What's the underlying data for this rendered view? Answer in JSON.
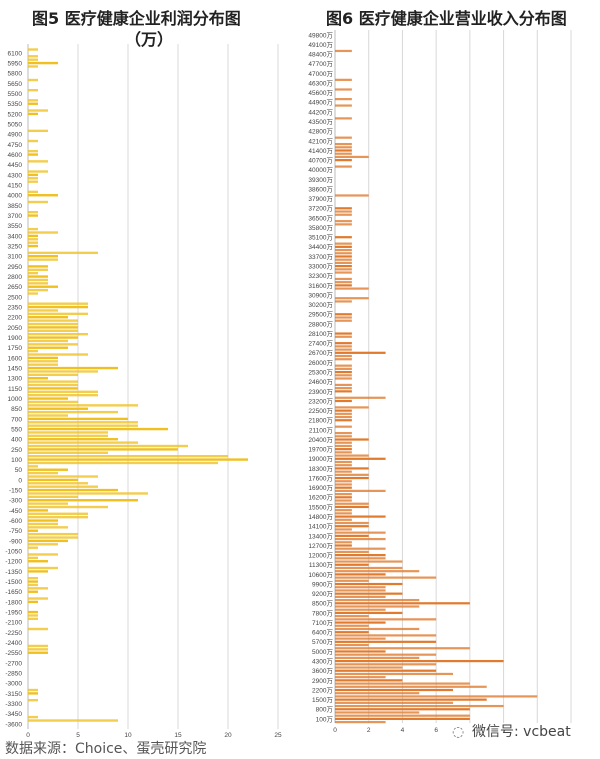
{
  "chart_data": [
    {
      "type": "bar",
      "orientation": "horizontal",
      "title": "图5 医疗健康企业利润分布图（万）",
      "title_line1": "图5 医疗健康企业利润分布图",
      "title_line2": "（万）",
      "xlim": [
        0,
        25
      ],
      "xticks": [
        "0",
        "5",
        "10",
        "15",
        "20",
        "25"
      ],
      "grid": true,
      "color": "#f0c020",
      "categories": [
        "6100",
        "5950",
        "5800",
        "5650",
        "5500",
        "5350",
        "5200",
        "5050",
        "4900",
        "4750",
        "4600",
        "4450",
        "4300",
        "4150",
        "4000",
        "3850",
        "3700",
        "3550",
        "3400",
        "3250",
        "3100",
        "2950",
        "2800",
        "2650",
        "2500",
        "2350",
        "2200",
        "2050",
        "1900",
        "1750",
        "1600",
        "1450",
        "1300",
        "1150",
        "1000",
        "850",
        "700",
        "550",
        "400",
        "250",
        "100",
        "50",
        "0",
        "-150",
        "-300",
        "-450",
        "-600",
        "-750",
        "-900",
        "-1050",
        "-1200",
        "-1350",
        "-1500",
        "-1650",
        "-1800",
        "-1950",
        "-2100",
        "-2250",
        "-2400",
        "-2550",
        "-2700",
        "-2850",
        "-3000",
        "-3150",
        "-3300",
        "-3450",
        "-3600"
      ],
      "values": [
        [
          1,
          0,
          1
        ],
        [
          1,
          3,
          1
        ],
        [
          0,
          0,
          0
        ],
        [
          1,
          0,
          0
        ],
        [
          1,
          0,
          0
        ],
        [
          1,
          1,
          0
        ],
        [
          2,
          1,
          0
        ],
        [
          0,
          0,
          0
        ],
        [
          2,
          0,
          0
        ],
        [
          1,
          0,
          0
        ],
        [
          1,
          1,
          0
        ],
        [
          2,
          0,
          0
        ],
        [
          2,
          1,
          1
        ],
        [
          1,
          0,
          0
        ],
        [
          1,
          3,
          0
        ],
        [
          2,
          0,
          0
        ],
        [
          1,
          1,
          0
        ],
        [
          0,
          0,
          1
        ],
        [
          3,
          1,
          1
        ],
        [
          1,
          1,
          0
        ],
        [
          7,
          3,
          3
        ],
        [
          0,
          2,
          2
        ],
        [
          1,
          2,
          2
        ],
        [
          2,
          3,
          2
        ],
        [
          1,
          0,
          0
        ],
        [
          6,
          6,
          3
        ],
        [
          6,
          4,
          5
        ],
        [
          5,
          5,
          5
        ],
        [
          6,
          5,
          4
        ],
        [
          5,
          4,
          1
        ],
        [
          6,
          3,
          3
        ],
        [
          3,
          9,
          7
        ],
        [
          5,
          2,
          5
        ],
        [
          5,
          5,
          7
        ],
        [
          7,
          4,
          5
        ],
        [
          11,
          6,
          9
        ],
        [
          4,
          10,
          11
        ],
        [
          11,
          14,
          8
        ],
        [
          8,
          9,
          11
        ],
        [
          16,
          15,
          8
        ],
        [
          20,
          22,
          19
        ],
        [
          1,
          4,
          3
        ],
        [
          7,
          5,
          6
        ],
        [
          7,
          9,
          12
        ],
        [
          5,
          11,
          4
        ],
        [
          8,
          2,
          6
        ],
        [
          6,
          3,
          3
        ],
        [
          4,
          1,
          5
        ],
        [
          5,
          4,
          3
        ],
        [
          1,
          0,
          3
        ],
        [
          1,
          2,
          0
        ],
        [
          3,
          2,
          0
        ],
        [
          1,
          1,
          1
        ],
        [
          2,
          1,
          0
        ],
        [
          2,
          1,
          0
        ],
        [
          0,
          1,
          1
        ],
        [
          1,
          0,
          0
        ],
        [
          2,
          0,
          0
        ],
        [
          0,
          0,
          2
        ],
        [
          2,
          2,
          0
        ],
        [
          0,
          0,
          0
        ],
        [
          0,
          0,
          0
        ],
        [
          0,
          0,
          0
        ],
        [
          1,
          1,
          0
        ],
        [
          1,
          0,
          0
        ],
        [
          0,
          0,
          1
        ],
        [
          9,
          0,
          0
        ]
      ]
    },
    {
      "type": "bar",
      "orientation": "horizontal",
      "title": "图6 医疗健康企业营业收入分布图",
      "xlim": [
        0,
        14
      ],
      "xticks": [
        "0",
        "2",
        "4",
        "6"
      ],
      "grid": true,
      "color": "#e07a2e",
      "categories": [
        "49800万",
        "49100万",
        "48400万",
        "47700万",
        "47000万",
        "46300万",
        "45600万",
        "44900万",
        "44200万",
        "43500万",
        "42800万",
        "42100万",
        "41400万",
        "40700万",
        "40000万",
        "39300万",
        "38600万",
        "37900万",
        "37200万",
        "36500万",
        "35800万",
        "35100万",
        "34400万",
        "33700万",
        "33000万",
        "32300万",
        "31600万",
        "30900万",
        "30200万",
        "29500万",
        "28800万",
        "28100万",
        "27400万",
        "26700万",
        "26000万",
        "25300万",
        "24600万",
        "23900万",
        "23200万",
        "22500万",
        "21800万",
        "21100万",
        "20400万",
        "19700万",
        "19000万",
        "18300万",
        "17600万",
        "16900万",
        "16200万",
        "15500万",
        "14800万",
        "14100万",
        "13400万",
        "12700万",
        "12000万",
        "11300万",
        "10600万",
        "9900万",
        "9200万",
        "8500万",
        "7800万",
        "7100万",
        "6400万",
        "5700万",
        "5000万",
        "4300万",
        "3600万",
        "2900万",
        "2200万",
        "1500万",
        "800万",
        "100万"
      ],
      "values": [
        [
          0,
          0,
          0
        ],
        [
          0,
          0,
          0
        ],
        [
          1,
          0,
          0
        ],
        [
          0,
          0,
          0
        ],
        [
          0,
          0,
          0
        ],
        [
          1,
          0,
          0
        ],
        [
          1,
          0,
          0
        ],
        [
          1,
          0,
          1
        ],
        [
          0,
          0,
          0
        ],
        [
          1,
          0,
          0
        ],
        [
          0,
          0,
          0
        ],
        [
          1,
          0,
          1
        ],
        [
          1,
          1,
          1
        ],
        [
          2,
          1,
          0
        ],
        [
          1,
          0,
          0
        ],
        [
          0,
          0,
          0
        ],
        [
          0,
          0,
          0
        ],
        [
          2,
          0,
          0
        ],
        [
          0,
          1,
          1
        ],
        [
          1,
          0,
          1
        ],
        [
          1,
          0,
          0
        ],
        [
          0,
          1,
          0
        ],
        [
          1,
          1,
          1
        ],
        [
          1,
          1,
          1
        ],
        [
          1,
          1,
          1
        ],
        [
          1,
          0,
          1
        ],
        [
          1,
          1,
          2
        ],
        [
          0,
          0,
          2
        ],
        [
          1,
          0,
          0
        ],
        [
          0,
          1,
          1
        ],
        [
          1,
          0,
          0
        ],
        [
          0,
          1,
          1
        ],
        [
          0,
          1,
          1
        ],
        [
          1,
          3,
          1
        ],
        [
          1,
          0,
          1
        ],
        [
          1,
          1,
          1
        ],
        [
          1,
          0,
          1
        ],
        [
          1,
          1,
          0
        ],
        [
          3,
          1,
          0
        ],
        [
          2,
          1,
          1
        ],
        [
          1,
          1,
          0
        ],
        [
          1,
          0,
          1
        ],
        [
          1,
          2,
          1
        ],
        [
          1,
          1,
          1
        ],
        [
          2,
          3,
          1
        ],
        [
          1,
          2,
          1
        ],
        [
          2,
          2,
          1
        ],
        [
          1,
          1,
          3
        ],
        [
          1,
          1,
          1
        ],
        [
          2,
          2,
          1
        ],
        [
          1,
          3,
          1
        ],
        [
          2,
          2,
          1
        ],
        [
          3,
          2,
          3
        ],
        [
          1,
          1,
          3
        ],
        [
          2,
          3,
          3
        ],
        [
          4,
          2,
          4
        ],
        [
          5,
          3,
          6
        ],
        [
          2,
          4,
          3
        ],
        [
          3,
          4,
          3
        ],
        [
          5,
          8,
          5
        ],
        [
          3,
          4,
          2
        ],
        [
          6,
          3,
          2
        ],
        [
          5,
          2,
          6
        ],
        [
          3,
          6,
          2
        ],
        [
          8,
          3,
          6
        ],
        [
          5,
          10,
          6
        ],
        [
          4,
          6,
          7
        ],
        [
          3,
          4,
          8
        ],
        [
          9,
          7,
          5
        ],
        [
          12,
          9,
          7
        ],
        [
          10,
          8,
          5
        ],
        [
          8,
          8,
          3
        ]
      ]
    }
  ],
  "source": "数据来源：Choice、蛋壳研究院",
  "watermark": "微信号: vcbeat"
}
